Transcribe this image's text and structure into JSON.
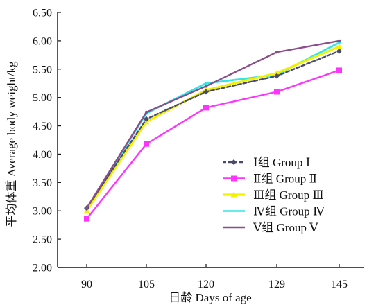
{
  "chart_data": {
    "type": "line",
    "title": "",
    "xlabel": "日龄  Days of age",
    "ylabel": "平均体重  Average body weight/kg",
    "categories": [
      "90",
      "105",
      "120",
      "129",
      "145"
    ],
    "ylim": [
      2.0,
      6.5
    ],
    "yticks": [
      "2.00",
      "2.50",
      "3.00",
      "3.50",
      "4.00",
      "4.50",
      "5.00",
      "5.50",
      "6.00",
      "6.50"
    ],
    "grid": false,
    "legend_position": "right-center",
    "series": [
      {
        "name": "Ⅰ组  Group Ⅰ",
        "color": "#4a4a6a",
        "marker": "diamond",
        "dashed": true,
        "values": [
          3.05,
          4.62,
          5.1,
          5.38,
          5.82
        ]
      },
      {
        "name": "Ⅱ组  Group Ⅱ",
        "color": "#ff33ff",
        "marker": "square",
        "dashed": false,
        "values": [
          2.86,
          4.18,
          4.82,
          5.1,
          5.48
        ]
      },
      {
        "name": "Ⅲ组  Group Ⅲ",
        "color": "#f2f200",
        "marker": "triangle",
        "dashed": false,
        "values": [
          3.0,
          4.57,
          5.13,
          5.43,
          5.9
        ]
      },
      {
        "name": "Ⅳ组  Group Ⅳ",
        "color": "#33e6e6",
        "marker": "none",
        "dashed": false,
        "values": [
          3.03,
          4.72,
          5.25,
          5.4,
          5.97
        ]
      },
      {
        "name": "Ⅴ组  Group Ⅴ",
        "color": "#8b4d8b",
        "marker": "none",
        "dashed": false,
        "values": [
          3.05,
          4.74,
          5.2,
          5.8,
          6.0
        ]
      }
    ]
  }
}
